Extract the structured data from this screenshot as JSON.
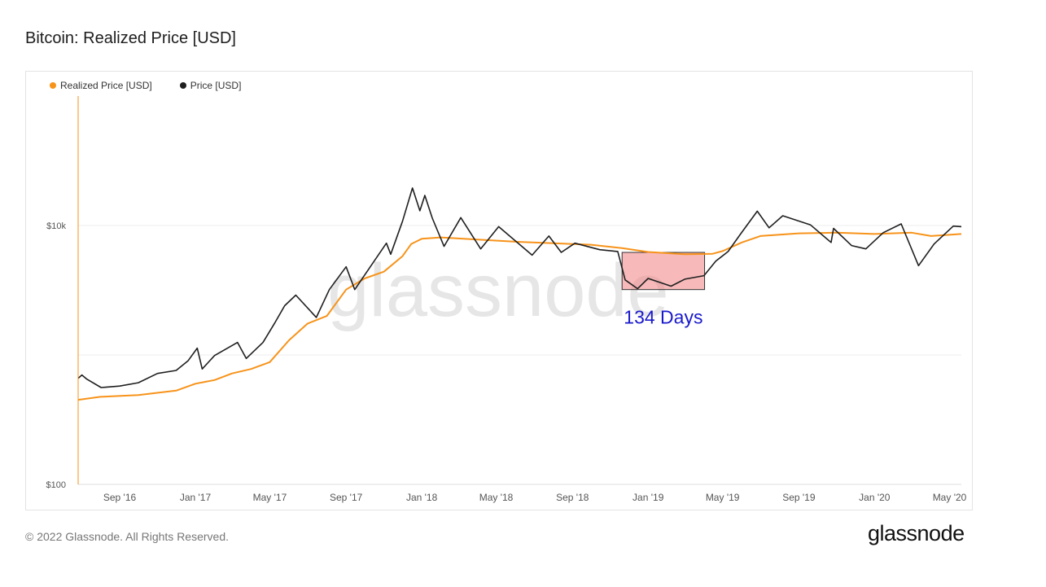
{
  "page": {
    "title": "Bitcoin: Realized Price [USD]",
    "copyright": "© 2022 Glassnode. All Rights Reserved.",
    "brand": "glassnode",
    "watermark": "glassnode"
  },
  "colors": {
    "realized": "#f7931a",
    "price": "#1f1f1f",
    "highlight_fill": "#f08080",
    "annotation": "#1a1acc",
    "grid": "#ececec"
  },
  "chart_data": {
    "type": "line",
    "title": "Bitcoin: Realized Price [USD]",
    "y_scale": "log",
    "ylim": [
      100,
      100000
    ],
    "xlim": [
      "2016-06-26",
      "2020-05-20"
    ],
    "x_ticks": [
      {
        "date": "2016-09-01",
        "label": "Sep '16"
      },
      {
        "date": "2017-01-01",
        "label": "Jan '17"
      },
      {
        "date": "2017-05-01",
        "label": "May '17"
      },
      {
        "date": "2017-09-01",
        "label": "Sep '17"
      },
      {
        "date": "2018-01-01",
        "label": "Jan '18"
      },
      {
        "date": "2018-05-01",
        "label": "May '18"
      },
      {
        "date": "2018-09-01",
        "label": "Sep '18"
      },
      {
        "date": "2019-01-01",
        "label": "Jan '19"
      },
      {
        "date": "2019-05-01",
        "label": "May '19"
      },
      {
        "date": "2019-09-01",
        "label": "Sep '19"
      },
      {
        "date": "2020-01-01",
        "label": "Jan '20"
      },
      {
        "date": "2020-05-01",
        "label": "May '20"
      }
    ],
    "y_ticks": [
      {
        "value": 100,
        "label": "$100"
      },
      {
        "value": 10000,
        "label": "$10k"
      }
    ],
    "grid": true,
    "legend_position": "top-left",
    "series": [
      {
        "name": "Realized Price [USD]",
        "color": "#f7931a",
        "points": [
          [
            "2016-06-26",
            450
          ],
          [
            "2016-08-01",
            475
          ],
          [
            "2016-10-01",
            490
          ],
          [
            "2016-12-01",
            530
          ],
          [
            "2017-01-01",
            600
          ],
          [
            "2017-02-01",
            640
          ],
          [
            "2017-03-01",
            720
          ],
          [
            "2017-04-01",
            780
          ],
          [
            "2017-05-01",
            880
          ],
          [
            "2017-06-01",
            1300
          ],
          [
            "2017-07-01",
            1750
          ],
          [
            "2017-08-01",
            2000
          ],
          [
            "2017-09-01",
            3200
          ],
          [
            "2017-10-01",
            3900
          ],
          [
            "2017-11-01",
            4400
          ],
          [
            "2017-12-01",
            5800
          ],
          [
            "2017-12-15",
            7200
          ],
          [
            "2018-01-01",
            7900
          ],
          [
            "2018-02-01",
            8100
          ],
          [
            "2018-04-01",
            7800
          ],
          [
            "2018-06-01",
            7500
          ],
          [
            "2018-08-01",
            7300
          ],
          [
            "2018-10-01",
            7100
          ],
          [
            "2018-11-20",
            6700
          ],
          [
            "2019-01-01",
            6250
          ],
          [
            "2019-03-01",
            6000
          ],
          [
            "2019-04-15",
            6050
          ],
          [
            "2019-05-01",
            6350
          ],
          [
            "2019-06-01",
            7400
          ],
          [
            "2019-07-01",
            8300
          ],
          [
            "2019-09-01",
            8700
          ],
          [
            "2019-11-01",
            8800
          ],
          [
            "2020-01-01",
            8600
          ],
          [
            "2020-03-01",
            8800
          ],
          [
            "2020-04-01",
            8300
          ],
          [
            "2020-05-20",
            8600
          ]
        ]
      },
      {
        "name": "Price [USD]",
        "color": "#1f1f1f",
        "points": [
          [
            "2016-06-26",
            660
          ],
          [
            "2016-07-02",
            700
          ],
          [
            "2016-07-10",
            650
          ],
          [
            "2016-08-02",
            560
          ],
          [
            "2016-09-01",
            575
          ],
          [
            "2016-10-01",
            610
          ],
          [
            "2016-11-01",
            720
          ],
          [
            "2016-12-01",
            760
          ],
          [
            "2016-12-20",
            900
          ],
          [
            "2017-01-04",
            1130
          ],
          [
            "2017-01-12",
            780
          ],
          [
            "2017-02-01",
            990
          ],
          [
            "2017-03-10",
            1250
          ],
          [
            "2017-03-24",
            940
          ],
          [
            "2017-04-20",
            1250
          ],
          [
            "2017-05-10",
            1800
          ],
          [
            "2017-05-25",
            2400
          ],
          [
            "2017-06-12",
            2900
          ],
          [
            "2017-07-15",
            1950
          ],
          [
            "2017-08-05",
            3200
          ],
          [
            "2017-09-01",
            4800
          ],
          [
            "2017-09-15",
            3200
          ],
          [
            "2017-10-10",
            4800
          ],
          [
            "2017-11-05",
            7300
          ],
          [
            "2017-11-12",
            6000
          ],
          [
            "2017-12-01",
            10800
          ],
          [
            "2017-12-17",
            19500
          ],
          [
            "2017-12-29",
            13000
          ],
          [
            "2018-01-06",
            17100
          ],
          [
            "2018-01-18",
            11400
          ],
          [
            "2018-02-06",
            6900
          ],
          [
            "2018-03-05",
            11500
          ],
          [
            "2018-04-06",
            6600
          ],
          [
            "2018-05-05",
            9800
          ],
          [
            "2018-06-28",
            5900
          ],
          [
            "2018-07-25",
            8300
          ],
          [
            "2018-08-14",
            6200
          ],
          [
            "2018-09-05",
            7300
          ],
          [
            "2018-10-15",
            6500
          ],
          [
            "2018-11-13",
            6300
          ],
          [
            "2018-11-25",
            3800
          ],
          [
            "2018-12-15",
            3250
          ],
          [
            "2019-01-01",
            3900
          ],
          [
            "2019-02-07",
            3400
          ],
          [
            "2019-03-01",
            3850
          ],
          [
            "2019-04-01",
            4100
          ],
          [
            "2019-04-20",
            5300
          ],
          [
            "2019-05-10",
            6300
          ],
          [
            "2019-05-30",
            8600
          ],
          [
            "2019-06-26",
            12900
          ],
          [
            "2019-07-15",
            9600
          ],
          [
            "2019-08-06",
            11900
          ],
          [
            "2019-09-20",
            10100
          ],
          [
            "2019-10-23",
            7400
          ],
          [
            "2019-10-27",
            9500
          ],
          [
            "2019-11-25",
            7000
          ],
          [
            "2019-12-18",
            6600
          ],
          [
            "2020-01-15",
            8800
          ],
          [
            "2020-02-13",
            10300
          ],
          [
            "2020-03-12",
            4900
          ],
          [
            "2020-04-06",
            7200
          ],
          [
            "2020-05-07",
            9900
          ],
          [
            "2020-05-20",
            9800
          ]
        ]
      }
    ],
    "annotations": [
      {
        "label": "134 Days",
        "x_start": "2018-11-20",
        "x_end": "2019-04-02",
        "y_low": 3200,
        "y_high": 6200
      }
    ]
  }
}
